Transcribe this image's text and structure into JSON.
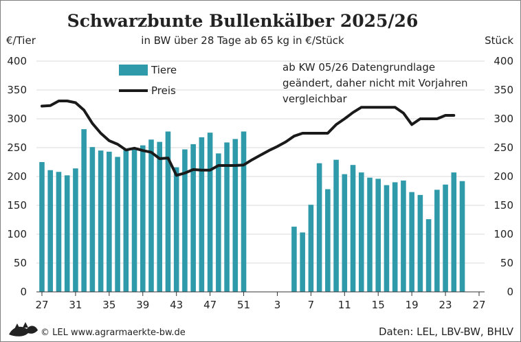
{
  "chart_data": {
    "type": "bar",
    "title": "Schwarzbunte Bullenkälber 2025/26",
    "subtitle": "in BW über 28 Tage ab 65 kg in €/Stück",
    "y_left_label": "€/Tier",
    "y_right_label": "Stück",
    "ylim": [
      0,
      400
    ],
    "y_ticks": [
      0,
      50,
      100,
      150,
      200,
      250,
      300,
      350,
      400
    ],
    "x_tick_labels": [
      "27",
      "31",
      "35",
      "39",
      "43",
      "47",
      "51",
      "3",
      "7",
      "11",
      "15",
      "19",
      "23",
      "27"
    ],
    "weeks": [
      "27",
      "28",
      "29",
      "30",
      "31",
      "32",
      "33",
      "34",
      "35",
      "36",
      "37",
      "38",
      "39",
      "40",
      "41",
      "42",
      "43",
      "44",
      "45",
      "46",
      "47",
      "48",
      "49",
      "50",
      "51",
      "52",
      "1",
      "2",
      "3",
      "4",
      "5",
      "6",
      "7",
      "8",
      "9",
      "10",
      "11",
      "12",
      "13",
      "14",
      "15",
      "16",
      "17",
      "18",
      "19",
      "20",
      "21",
      "22",
      "23",
      "24",
      "25",
      "26",
      "27"
    ],
    "grid": true,
    "legend_position": "top-left",
    "series": [
      {
        "name": "Tiere",
        "type": "bar",
        "color": "#2f9aaa",
        "values": [
          225,
          211,
          208,
          202,
          214,
          282,
          251,
          245,
          243,
          234,
          247,
          247,
          254,
          264,
          260,
          278,
          216,
          247,
          256,
          268,
          276,
          240,
          259,
          265,
          278,
          null,
          null,
          null,
          null,
          null,
          113,
          103,
          151,
          223,
          178,
          229,
          204,
          220,
          207,
          198,
          196,
          185,
          190,
          193,
          173,
          168,
          126,
          177,
          186,
          207,
          192,
          null,
          null
        ]
      },
      {
        "name": "Preis",
        "type": "line",
        "color": "#1a1a1a",
        "values": [
          322,
          323,
          331,
          331,
          328,
          315,
          292,
          275,
          262,
          256,
          246,
          249,
          245,
          242,
          231,
          232,
          202,
          206,
          212,
          211,
          211,
          219,
          219,
          219,
          220,
          229,
          237,
          245,
          252,
          260,
          270,
          275,
          275,
          275,
          275,
          290,
          300,
          311,
          320,
          320,
          320,
          320,
          320,
          310,
          290,
          300,
          300,
          300,
          306,
          306,
          null,
          null,
          null
        ]
      }
    ],
    "annotation": [
      "ab KW 05/26 Datengrundlage",
      "geändert, daher nicht mit Vorjahren",
      "vergleichbar"
    ]
  },
  "footer": {
    "logo": "LEL",
    "copyright": "© LEL www.agrarmaerkte-bw.de",
    "source": "Daten: LEL, LBV-BW, BHLV"
  },
  "colors": {
    "bar": "#2f9aaa",
    "line": "#1a1a1a",
    "grid": "#d9d9d9"
  }
}
